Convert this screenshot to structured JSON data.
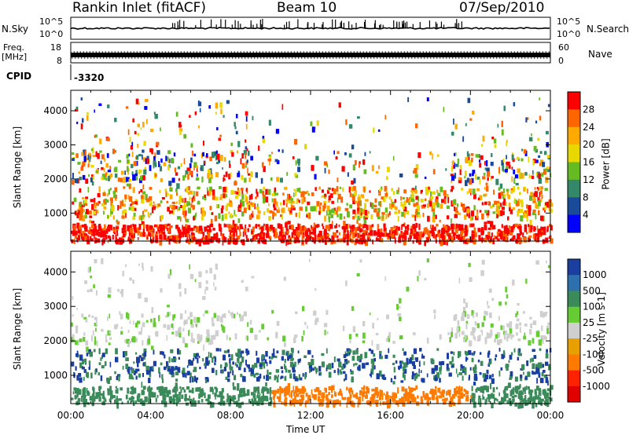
{
  "header": {
    "station": "Rankin Inlet (fitACF)",
    "beam": "Beam 10",
    "date": "07/Sep/2010"
  },
  "noise_panel": {
    "left_label": "N.Sky",
    "right_label": "N.Search",
    "tick_top": "10^5",
    "tick_bottom": "10^0"
  },
  "freq_panel": {
    "left_label_1": "Freq.",
    "left_label_2": "[MHz]",
    "right_label": "Nave",
    "ticks_left": [
      "18",
      "8"
    ],
    "ticks_right": [
      "60",
      "0"
    ]
  },
  "cpid": {
    "label": "CPID",
    "value": "-3320"
  },
  "chart_data": [
    {
      "type": "heatmap",
      "name": "power",
      "ylabel": "Slant Range [km]",
      "xlabel": "",
      "yticks": [
        1000,
        2000,
        3000,
        4000
      ],
      "ylim": [
        180,
        4600
      ],
      "xlim_hours": [
        0,
        24
      ],
      "colorbar": {
        "label": "Power [dB]",
        "ticks": [
          "28",
          "24",
          "20",
          "16",
          "12",
          "8",
          "4"
        ],
        "colors": [
          "#ff0000",
          "#ff6600",
          "#ffaa00",
          "#e8d800",
          "#66bb22",
          "#33886a",
          "#1a4a9a",
          "#0000ff"
        ]
      }
    },
    {
      "type": "heatmap",
      "name": "velocity",
      "ylabel": "Slant Range [km]",
      "xlabel": "Time UT",
      "yticks": [
        1000,
        2000,
        3000,
        4000
      ],
      "ylim": [
        180,
        4600
      ],
      "xlim_hours": [
        0,
        24
      ],
      "xticks": [
        "00:00",
        "04:00",
        "08:00",
        "12:00",
        "16:00",
        "20:00",
        "00:00"
      ],
      "colorbar": {
        "label": "Velocity [m s-1]",
        "ticks": [
          "1000",
          "500",
          "100",
          "25",
          "-25",
          "-100",
          "-500",
          "-1000"
        ],
        "colors": [
          "#1a3fa0",
          "#2e6fae",
          "#3a8a5a",
          "#66cc33",
          "#cfcfcf",
          "#e8a000",
          "#ff7a00",
          "#ff2200",
          "#e00000"
        ]
      }
    }
  ]
}
